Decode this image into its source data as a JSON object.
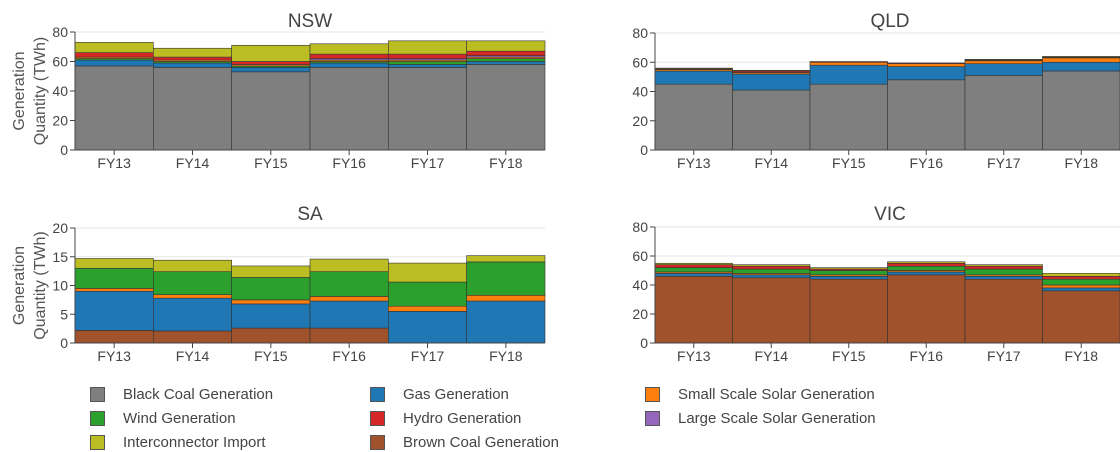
{
  "series_colors": {
    "Black Coal Generation": "#7f7f7f",
    "Brown Coal Generation": "#a0522d",
    "Gas Generation": "#1f77b4",
    "Hydro Generation": "#d62728",
    "Wind Generation": "#2ca02c",
    "Large Scale Solar Generation": "#9467bd",
    "Small Scale Solar Generation": "#ff7f0e",
    "Interconnector Import": "#bcbd22"
  },
  "legend": {
    "items": [
      "Black Coal Generation",
      "Gas Generation",
      "Small Scale Solar Generation",
      "Wind Generation",
      "Hydro Generation",
      "Large Scale Solar Generation",
      "Interconnector Import",
      "Brown Coal Generation"
    ]
  },
  "chart_data": [
    {
      "type": "bar",
      "title": "NSW",
      "ylabel": "Generation Quantity (TWh)",
      "ylim": [
        0,
        80
      ],
      "yticks": [
        0,
        20,
        40,
        60,
        80
      ],
      "grid": true,
      "categories": [
        "FY13",
        "FY14",
        "FY15",
        "FY16",
        "FY17",
        "FY18"
      ],
      "series": [
        {
          "name": "Black Coal Generation",
          "values": [
            57,
            56,
            53,
            56,
            56,
            58
          ]
        },
        {
          "name": "Gas Generation",
          "values": [
            4,
            3,
            3,
            3,
            2,
            2
          ]
        },
        {
          "name": "Wind Generation",
          "values": [
            1,
            1,
            1,
            1,
            2,
            2
          ]
        },
        {
          "name": "Small Scale Solar Generation",
          "values": [
            1,
            1,
            1,
            1,
            1,
            1
          ]
        },
        {
          "name": "Large Scale Solar Generation",
          "values": [
            0,
            0,
            0,
            1,
            1,
            1
          ]
        },
        {
          "name": "Hydro Generation",
          "values": [
            3,
            2,
            2,
            3,
            3,
            3
          ]
        },
        {
          "name": "Interconnector Import",
          "values": [
            7,
            6,
            11,
            7,
            9,
            7
          ]
        }
      ]
    },
    {
      "type": "bar",
      "title": "QLD",
      "ylabel": "",
      "ylim": [
        0,
        80
      ],
      "yticks": [
        0,
        20,
        40,
        60,
        80
      ],
      "grid": true,
      "categories": [
        "FY13",
        "FY14",
        "FY15",
        "FY16",
        "FY17",
        "FY18"
      ],
      "series": [
        {
          "name": "Black Coal Generation",
          "values": [
            45,
            41,
            45,
            48,
            51,
            54
          ]
        },
        {
          "name": "Gas Generation",
          "values": [
            9,
            11,
            13,
            9,
            8,
            6
          ]
        },
        {
          "name": "Small Scale Solar Generation",
          "values": [
            1,
            1,
            2,
            2,
            2,
            3
          ]
        },
        {
          "name": "Hydro Generation",
          "values": [
            0.5,
            1,
            0.5,
            0.5,
            0.5,
            0.5
          ]
        },
        {
          "name": "Interconnector Import",
          "values": [
            0.5,
            0.5,
            0,
            0,
            0.5,
            0.5
          ]
        }
      ]
    },
    {
      "type": "bar",
      "title": "SA",
      "ylabel": "Generation Quantity (TWh)",
      "ylim": [
        0,
        20
      ],
      "yticks": [
        0,
        5,
        10,
        15,
        20
      ],
      "grid": true,
      "categories": [
        "FY13",
        "FY14",
        "FY15",
        "FY16",
        "FY17",
        "FY18"
      ],
      "series": [
        {
          "name": "Brown Coal Generation",
          "values": [
            2.2,
            2.1,
            2.6,
            2.6,
            0,
            0
          ]
        },
        {
          "name": "Gas Generation",
          "values": [
            6.8,
            5.7,
            4.2,
            4.7,
            5.5,
            7.3
          ]
        },
        {
          "name": "Small Scale Solar Generation",
          "values": [
            0.5,
            0.6,
            0.7,
            0.8,
            0.9,
            1.0
          ]
        },
        {
          "name": "Wind Generation",
          "values": [
            3.5,
            4.0,
            3.9,
            4.3,
            4.2,
            5.8
          ]
        },
        {
          "name": "Interconnector Import",
          "values": [
            1.7,
            2.0,
            2.0,
            2.2,
            3.3,
            1.1
          ]
        }
      ]
    },
    {
      "type": "bar",
      "title": "VIC",
      "ylabel": "",
      "ylim": [
        0,
        80
      ],
      "yticks": [
        0,
        20,
        40,
        60,
        80
      ],
      "grid": true,
      "categories": [
        "FY13",
        "FY14",
        "FY15",
        "FY16",
        "FY17",
        "FY18"
      ],
      "series": [
        {
          "name": "Brown Coal Generation",
          "values": [
            46,
            45,
            44,
            47,
            44,
            36
          ]
        },
        {
          "name": "Gas Generation",
          "values": [
            2,
            2,
            2,
            2,
            2,
            2
          ]
        },
        {
          "name": "Small Scale Solar Generation",
          "values": [
            1,
            1,
            1,
            1,
            1,
            2
          ]
        },
        {
          "name": "Wind Generation",
          "values": [
            3,
            3,
            3,
            3,
            4,
            4
          ]
        },
        {
          "name": "Hydro Generation",
          "values": [
            2,
            2,
            1,
            2,
            2,
            2
          ]
        },
        {
          "name": "Interconnector Import",
          "values": [
            1,
            1,
            1,
            1,
            1,
            2
          ]
        }
      ]
    }
  ]
}
